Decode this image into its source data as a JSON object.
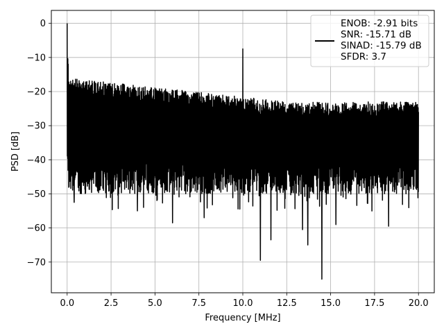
{
  "chart_data": {
    "type": "line",
    "title": "",
    "xlabel": "Frequency [MHz]",
    "ylabel": "PSD [dB]",
    "xlim": [
      -0.9,
      20.9
    ],
    "ylim": [
      -79,
      3.8
    ],
    "xticks": [
      0.0,
      2.5,
      5.0,
      7.5,
      10.0,
      12.5,
      15.0,
      17.5,
      20.0
    ],
    "xtick_labels": [
      "0.0",
      "2.5",
      "5.0",
      "7.5",
      "10.0",
      "12.5",
      "15.0",
      "17.5",
      "20.0"
    ],
    "yticks": [
      0,
      -10,
      -20,
      -30,
      -40,
      -50,
      -60,
      -70
    ],
    "ytick_labels": [
      "0",
      "−10",
      "−20",
      "−30",
      "−40",
      "−50",
      "−60",
      "−70"
    ],
    "grid": true,
    "legend": {
      "location": "upper right",
      "entries": [
        "ENOB: -2.91 bits",
        "SNR: -15.71 dB",
        "SINAD: -15.79 dB",
        "SFDR: 3.7"
      ]
    },
    "series": [
      {
        "color": "#000000",
        "style": "dense noise floor",
        "x_range": [
          0.0,
          20.0
        ],
        "floor_upper_db_start": -16,
        "floor_upper_db_end": -23,
        "floor_lower_db_typical": -45,
        "peaks": [
          {
            "x": 0.0,
            "y": 0.0
          },
          {
            "x": 10.0,
            "y": -7.5
          }
        ],
        "notable_dips": [
          {
            "x": 0.4,
            "y": -52.5
          },
          {
            "x": 4.0,
            "y": -55
          },
          {
            "x": 6.0,
            "y": -58.5
          },
          {
            "x": 7.8,
            "y": -57
          },
          {
            "x": 11.0,
            "y": -69.5
          },
          {
            "x": 11.6,
            "y": -63.5
          },
          {
            "x": 13.4,
            "y": -60.5
          },
          {
            "x": 13.7,
            "y": -65
          },
          {
            "x": 14.5,
            "y": -75
          },
          {
            "x": 15.3,
            "y": -59
          },
          {
            "x": 18.3,
            "y": -59.5
          }
        ]
      }
    ]
  }
}
